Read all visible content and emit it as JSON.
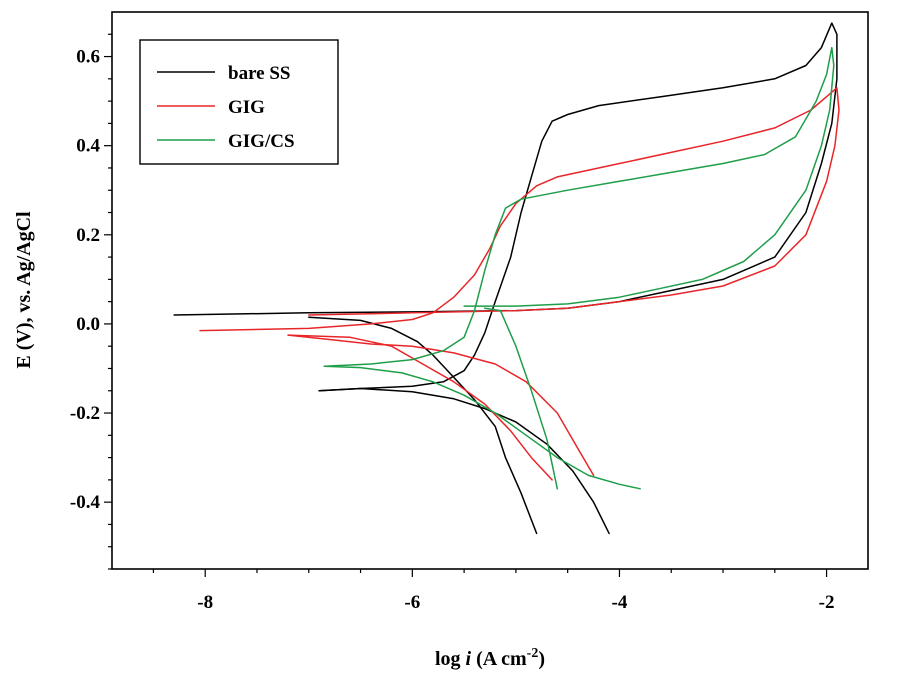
{
  "chart_data": {
    "type": "line",
    "xlabel": {
      "prefix": "log ",
      "italic": "i",
      "units": " (A cm",
      "sup": "-2",
      "close": ")"
    },
    "ylabel": "E (V), vs. Ag/AgCl",
    "xlim": [
      -8.9,
      -1.6
    ],
    "ylim": [
      -0.55,
      0.7
    ],
    "xticks": [
      -8,
      -6,
      -4,
      -2
    ],
    "xtick_labels": [
      "-8",
      "-6",
      "-4",
      "-2"
    ],
    "yticks": [
      -0.4,
      -0.2,
      0.0,
      0.2,
      0.4,
      0.6
    ],
    "ytick_labels": [
      "-0.4",
      "-0.2",
      "0.0",
      "0.2",
      "0.4",
      "0.6"
    ],
    "legend_position": "top-left",
    "grid": false,
    "series": [
      {
        "name": "bare SS",
        "color": "#000000",
        "segments": [
          [
            [
              -6.9,
              -0.15
            ],
            [
              -6.5,
              -0.145
            ],
            [
              -6.0,
              -0.14
            ],
            [
              -5.7,
              -0.13
            ],
            [
              -5.5,
              -0.105
            ],
            [
              -5.4,
              -0.07
            ],
            [
              -5.3,
              -0.02
            ],
            [
              -5.2,
              0.05
            ],
            [
              -5.05,
              0.15
            ],
            [
              -4.95,
              0.25
            ],
            [
              -4.85,
              0.33
            ],
            [
              -4.75,
              0.41
            ],
            [
              -4.65,
              0.455
            ],
            [
              -4.5,
              0.47
            ],
            [
              -4.2,
              0.49
            ],
            [
              -3.6,
              0.51
            ],
            [
              -3.0,
              0.53
            ],
            [
              -2.5,
              0.55
            ],
            [
              -2.2,
              0.58
            ],
            [
              -2.05,
              0.62
            ],
            [
              -1.95,
              0.675
            ],
            [
              -1.9,
              0.65
            ],
            [
              -1.9,
              0.55
            ],
            [
              -1.95,
              0.45
            ],
            [
              -2.05,
              0.36
            ],
            [
              -2.2,
              0.25
            ],
            [
              -2.5,
              0.15
            ],
            [
              -3.0,
              0.1
            ],
            [
              -3.5,
              0.075
            ],
            [
              -4.0,
              0.05
            ],
            [
              -4.5,
              0.035
            ],
            [
              -5.0,
              0.03
            ],
            [
              -6.0,
              0.027
            ],
            [
              -7.0,
              0.025
            ],
            [
              -8.3,
              0.02
            ]
          ],
          [
            [
              -6.9,
              -0.15
            ],
            [
              -6.5,
              -0.145
            ],
            [
              -6.0,
              -0.152
            ],
            [
              -5.6,
              -0.168
            ],
            [
              -5.3,
              -0.19
            ],
            [
              -5.0,
              -0.22
            ],
            [
              -4.7,
              -0.27
            ],
            [
              -4.45,
              -0.33
            ],
            [
              -4.25,
              -0.4
            ],
            [
              -4.1,
              -0.47
            ]
          ],
          [
            [
              -7.0,
              0.015
            ],
            [
              -6.5,
              0.008
            ],
            [
              -6.2,
              -0.01
            ],
            [
              -5.95,
              -0.04
            ],
            [
              -5.8,
              -0.07
            ],
            [
              -5.6,
              -0.12
            ],
            [
              -5.4,
              -0.17
            ],
            [
              -5.2,
              -0.23
            ],
            [
              -5.1,
              -0.3
            ],
            [
              -4.95,
              -0.38
            ],
            [
              -4.8,
              -0.47
            ]
          ]
        ]
      },
      {
        "name": "GIG",
        "color": "#e8262a",
        "segments": [
          [
            [
              -8.05,
              -0.015
            ],
            [
              -7.0,
              -0.01
            ],
            [
              -6.4,
              0.0
            ],
            [
              -6.0,
              0.01
            ],
            [
              -5.8,
              0.025
            ],
            [
              -5.6,
              0.06
            ],
            [
              -5.4,
              0.11
            ],
            [
              -5.25,
              0.17
            ],
            [
              -5.15,
              0.22
            ],
            [
              -5.0,
              0.27
            ],
            [
              -4.8,
              0.31
            ],
            [
              -4.6,
              0.33
            ],
            [
              -4.0,
              0.36
            ],
            [
              -3.5,
              0.385
            ],
            [
              -3.0,
              0.41
            ],
            [
              -2.5,
              0.44
            ],
            [
              -2.15,
              0.48
            ],
            [
              -1.95,
              0.52
            ],
            [
              -1.9,
              0.53
            ],
            [
              -1.88,
              0.48
            ],
            [
              -1.92,
              0.4
            ],
            [
              -2.0,
              0.32
            ],
            [
              -2.2,
              0.2
            ],
            [
              -2.5,
              0.13
            ],
            [
              -3.0,
              0.085
            ],
            [
              -3.5,
              0.065
            ],
            [
              -4.0,
              0.05
            ],
            [
              -4.5,
              0.035
            ],
            [
              -5.0,
              0.03
            ],
            [
              -6.0,
              0.025
            ],
            [
              -7.0,
              0.02
            ]
          ],
          [
            [
              -7.2,
              -0.025
            ],
            [
              -6.8,
              -0.035
            ],
            [
              -6.4,
              -0.045
            ],
            [
              -6.0,
              -0.05
            ],
            [
              -5.6,
              -0.065
            ],
            [
              -5.2,
              -0.09
            ],
            [
              -4.9,
              -0.13
            ],
            [
              -4.6,
              -0.2
            ],
            [
              -4.4,
              -0.28
            ],
            [
              -4.25,
              -0.34
            ]
          ],
          [
            [
              -7.2,
              -0.025
            ],
            [
              -6.6,
              -0.03
            ],
            [
              -6.2,
              -0.05
            ],
            [
              -5.9,
              -0.09
            ],
            [
              -5.6,
              -0.13
            ],
            [
              -5.3,
              -0.18
            ],
            [
              -5.05,
              -0.24
            ],
            [
              -4.85,
              -0.3
            ],
            [
              -4.65,
              -0.35
            ]
          ]
        ]
      },
      {
        "name": "GIG/CS",
        "color": "#1f9e4a",
        "segments": [
          [
            [
              -6.85,
              -0.095
            ],
            [
              -6.4,
              -0.09
            ],
            [
              -6.0,
              -0.08
            ],
            [
              -5.7,
              -0.06
            ],
            [
              -5.5,
              -0.03
            ],
            [
              -5.4,
              0.03
            ],
            [
              -5.3,
              0.12
            ],
            [
              -5.2,
              0.2
            ],
            [
              -5.1,
              0.26
            ],
            [
              -4.95,
              0.28
            ],
            [
              -4.5,
              0.3
            ],
            [
              -4.0,
              0.32
            ],
            [
              -3.5,
              0.34
            ],
            [
              -3.0,
              0.36
            ],
            [
              -2.6,
              0.38
            ],
            [
              -2.3,
              0.42
            ],
            [
              -2.1,
              0.5
            ],
            [
              -2.0,
              0.56
            ],
            [
              -1.95,
              0.62
            ],
            [
              -1.93,
              0.58
            ],
            [
              -1.97,
              0.48
            ],
            [
              -2.05,
              0.4
            ],
            [
              -2.2,
              0.3
            ],
            [
              -2.5,
              0.2
            ],
            [
              -2.8,
              0.14
            ],
            [
              -3.2,
              0.1
            ],
            [
              -3.6,
              0.08
            ],
            [
              -4.0,
              0.06
            ],
            [
              -4.5,
              0.045
            ],
            [
              -5.0,
              0.04
            ],
            [
              -5.5,
              0.04
            ]
          ],
          [
            [
              -6.85,
              -0.095
            ],
            [
              -6.5,
              -0.098
            ],
            [
              -6.1,
              -0.11
            ],
            [
              -5.8,
              -0.13
            ],
            [
              -5.5,
              -0.16
            ],
            [
              -5.2,
              -0.2
            ],
            [
              -4.9,
              -0.25
            ],
            [
              -4.6,
              -0.3
            ],
            [
              -4.3,
              -0.34
            ],
            [
              -4.0,
              -0.36
            ],
            [
              -3.8,
              -0.37
            ]
          ],
          [
            [
              -5.3,
              0.035
            ],
            [
              -5.15,
              0.03
            ],
            [
              -5.0,
              -0.05
            ],
            [
              -4.85,
              -0.15
            ],
            [
              -4.7,
              -0.26
            ],
            [
              -4.6,
              -0.37
            ]
          ]
        ]
      }
    ]
  }
}
